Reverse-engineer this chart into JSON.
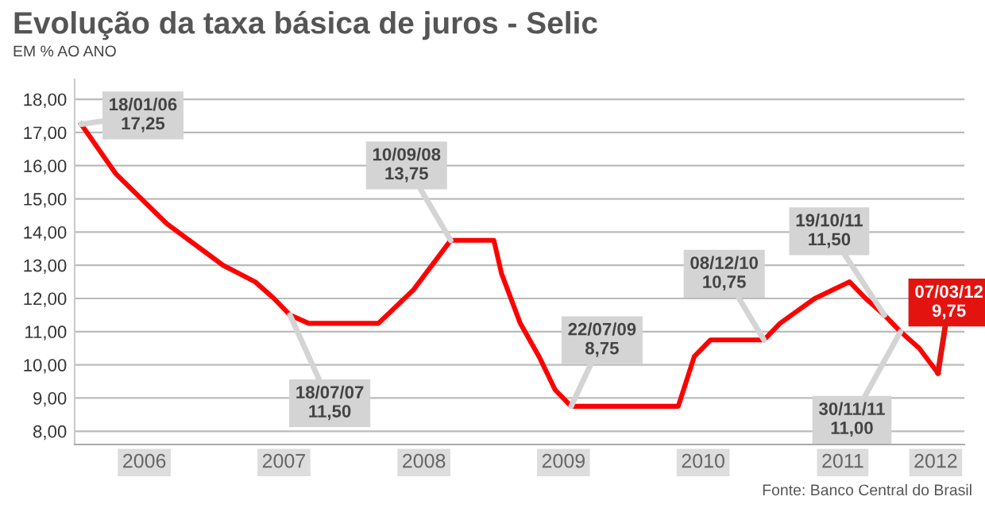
{
  "chart_data": {
    "type": "line",
    "title": "Evolução da taxa básica de juros - Selic",
    "subtitle": "EM % AO ANO",
    "x": [
      "2006-01-18",
      "2006-04-19",
      "2006-08-30",
      "2007-01-24",
      "2007-03-07",
      "2007-04-18",
      "2007-06-06",
      "2007-07-18",
      "2007-09-05",
      "2008-03-05",
      "2008-06-04",
      "2008-09-10",
      "2009-01-01",
      "2009-01-21",
      "2009-03-11",
      "2009-04-29",
      "2009-06-10",
      "2009-07-22",
      "2010-04-28",
      "2010-06-09",
      "2010-07-21",
      "2010-12-08",
      "2011-01-19",
      "2011-04-20",
      "2011-07-20",
      "2011-08-31",
      "2011-10-19",
      "2011-11-30",
      "2012-01-18",
      "2012-03-07"
    ],
    "series": [
      {
        "color": "#ff0000",
        "values": [
          17.25,
          15.75,
          14.25,
          13.0,
          12.75,
          12.5,
          12.0,
          11.5,
          11.25,
          11.25,
          12.25,
          13.75,
          13.75,
          12.75,
          11.25,
          10.25,
          9.25,
          8.75,
          8.75,
          10.25,
          10.75,
          10.75,
          11.25,
          12.0,
          12.5,
          12.0,
          11.5,
          11.0,
          10.5,
          9.75
        ]
      }
    ],
    "xlim": [
      "2006-01-01",
      "2012-05-15"
    ],
    "xticks": [
      {
        "value": "2006-07-02",
        "label": "2006"
      },
      {
        "value": "2007-07-02",
        "label": "2007"
      },
      {
        "value": "2008-07-02",
        "label": "2008"
      },
      {
        "value": "2009-07-02",
        "label": "2009"
      },
      {
        "value": "2010-07-02",
        "label": "2010"
      },
      {
        "value": "2011-07-02",
        "label": "2011"
      },
      {
        "value": "2012-03-01",
        "label": "2012"
      }
    ],
    "ylim": [
      7.6,
      18.6
    ],
    "yticks": [
      {
        "value": 8,
        "label": "8,00"
      },
      {
        "value": 9,
        "label": "9,00"
      },
      {
        "value": 10,
        "label": "10,00"
      },
      {
        "value": 11,
        "label": "11,00"
      },
      {
        "value": 12,
        "label": "12,00"
      },
      {
        "value": 13,
        "label": "13,00"
      },
      {
        "value": 14,
        "label": "14,00"
      },
      {
        "value": 15,
        "label": "15,00"
      },
      {
        "value": 16,
        "label": "16,00"
      },
      {
        "value": 17,
        "label": "17,00"
      },
      {
        "value": 18,
        "label": "18,00"
      }
    ],
    "grid": "y",
    "marker": "none",
    "line_style": "solid",
    "annotations": [
      {
        "text": "18/01/06\n17,25",
        "x": "2006-01-18",
        "y": 17.25
      },
      {
        "text": "18/07/07\n11,50",
        "x": "2007-07-18",
        "y": 11.5
      },
      {
        "text": "10/09/08\n13,75",
        "x": "2008-09-10",
        "y": 13.75
      },
      {
        "text": "22/07/09\n8,75",
        "x": "2009-07-22",
        "y": 8.75
      },
      {
        "text": "08/12/10\n10,75",
        "x": "2010-12-08",
        "y": 10.75
      },
      {
        "text": "19/10/11\n11,50",
        "x": "2011-10-19",
        "y": 11.5
      },
      {
        "text": "30/11/11\n11,00",
        "x": "2011-11-30",
        "y": 11.0
      },
      {
        "text": "07/03/12\n9,75",
        "x": "2012-03-07",
        "y": 9.75
      },
      "Fonte: Banco Central do Brasil"
    ]
  }
}
